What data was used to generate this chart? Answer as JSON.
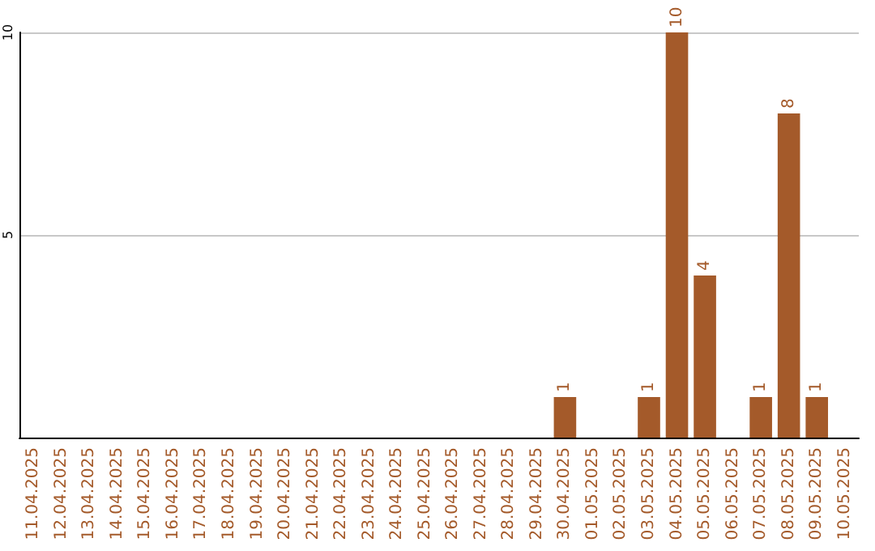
{
  "chart_data": {
    "type": "bar",
    "categories": [
      "11.04.2025",
      "12.04.2025",
      "13.04.2025",
      "14.04.2025",
      "15.04.2025",
      "16.04.2025",
      "17.04.2025",
      "18.04.2025",
      "19.04.2025",
      "20.04.2025",
      "21.04.2025",
      "22.04.2025",
      "23.04.2025",
      "24.04.2025",
      "25.04.2025",
      "26.04.2025",
      "27.04.2025",
      "28.04.2025",
      "29.04.2025",
      "30.04.2025",
      "01.05.2025",
      "02.05.2025",
      "03.05.2025",
      "04.05.2025",
      "05.05.2025",
      "06.05.2025",
      "07.05.2025",
      "08.05.2025",
      "09.05.2025",
      "10.05.2025"
    ],
    "values": [
      0,
      0,
      0,
      0,
      0,
      0,
      0,
      0,
      0,
      0,
      0,
      0,
      0,
      0,
      0,
      0,
      0,
      0,
      0,
      1,
      0,
      0,
      1,
      10,
      4,
      0,
      1,
      8,
      1,
      0
    ],
    "value_labels": [
      null,
      null,
      null,
      null,
      null,
      null,
      null,
      null,
      null,
      null,
      null,
      null,
      null,
      null,
      null,
      null,
      null,
      null,
      null,
      "1",
      null,
      null,
      "1",
      "10",
      "4",
      null,
      "1",
      "8",
      "1",
      null
    ],
    "color": "#a45a2a",
    "ylim": [
      0,
      10
    ],
    "yticks": [
      {
        "value": 0,
        "label": null
      },
      5,
      10
    ],
    "grid": "y"
  }
}
